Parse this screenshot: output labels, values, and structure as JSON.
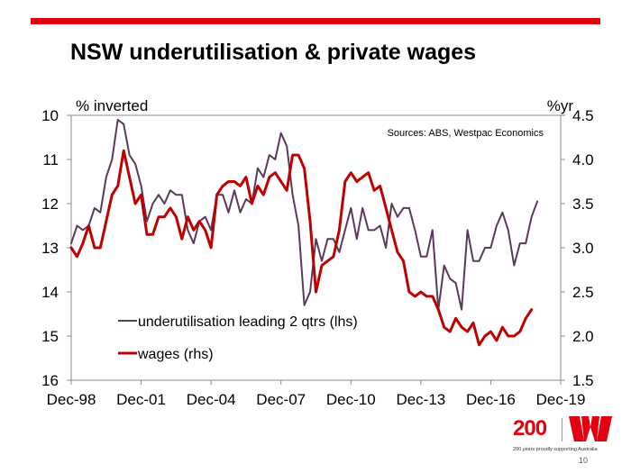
{
  "slide": {
    "title": "NSW underutilisation & private wages",
    "page_number": "10"
  },
  "logo": {
    "number": "200",
    "tagline": "200 years proudly supporting Australia"
  },
  "chart_data": {
    "type": "line",
    "title": "NSW underutilisation & private wages",
    "source": "Sources: ABS, Westpac Economics",
    "left_axis_label": "% inverted",
    "right_axis_label": "%yr",
    "left_axis": {
      "min": 10,
      "max": 16,
      "inverted": true,
      "ticks": [
        "10",
        "11",
        "12",
        "13",
        "14",
        "15",
        "16"
      ]
    },
    "right_axis": {
      "min": 1.5,
      "max": 4.5,
      "ticks": [
        "1.5",
        "2.0",
        "2.5",
        "3.0",
        "3.5",
        "4.0",
        "4.5"
      ]
    },
    "x_range": [
      "1998-12",
      "2019-12"
    ],
    "x_tick_labels": [
      "Dec-98",
      "Dec-01",
      "Dec-04",
      "Dec-07",
      "Dec-10",
      "Dec-13",
      "Dec-16",
      "Dec-19"
    ],
    "x_tick_dates": [
      "1998-12",
      "2001-12",
      "2004-12",
      "2007-12",
      "2010-12",
      "2013-12",
      "2016-12",
      "2019-12"
    ],
    "grid": false,
    "legend_position": "bottom-left",
    "series": [
      {
        "name": "underutilisation leading 2 qtrs (lhs)",
        "axis": "left",
        "color": "#5a3a5a",
        "points": [
          [
            "1998-12",
            12.9
          ],
          [
            "1999-03",
            12.5
          ],
          [
            "1999-06",
            12.6
          ],
          [
            "1999-09",
            12.5
          ],
          [
            "1999-12",
            12.1
          ],
          [
            "2000-03",
            12.2
          ],
          [
            "2000-06",
            11.4
          ],
          [
            "2000-09",
            11.0
          ],
          [
            "2000-12",
            10.1
          ],
          [
            "2001-03",
            10.2
          ],
          [
            "2001-06",
            10.9
          ],
          [
            "2001-09",
            11.1
          ],
          [
            "2001-12",
            11.6
          ],
          [
            "2002-03",
            12.4
          ],
          [
            "2002-06",
            12.0
          ],
          [
            "2002-09",
            11.8
          ],
          [
            "2002-12",
            12.0
          ],
          [
            "2003-03",
            11.7
          ],
          [
            "2003-06",
            11.8
          ],
          [
            "2003-09",
            11.8
          ],
          [
            "2003-12",
            12.6
          ],
          [
            "2004-03",
            12.9
          ],
          [
            "2004-06",
            12.4
          ],
          [
            "2004-09",
            12.3
          ],
          [
            "2004-12",
            12.6
          ],
          [
            "2005-03",
            11.8
          ],
          [
            "2005-06",
            11.8
          ],
          [
            "2005-09",
            12.2
          ],
          [
            "2005-12",
            11.7
          ],
          [
            "2006-03",
            12.2
          ],
          [
            "2006-06",
            11.9
          ],
          [
            "2006-09",
            12.0
          ],
          [
            "2006-12",
            11.2
          ],
          [
            "2007-03",
            11.4
          ],
          [
            "2007-06",
            10.9
          ],
          [
            "2007-09",
            11.0
          ],
          [
            "2007-12",
            10.4
          ],
          [
            "2008-03",
            10.7
          ],
          [
            "2008-06",
            11.8
          ],
          [
            "2008-09",
            12.5
          ],
          [
            "2008-12",
            14.3
          ],
          [
            "2009-03",
            14.0
          ],
          [
            "2009-06",
            12.8
          ],
          [
            "2009-09",
            13.3
          ],
          [
            "2009-12",
            12.8
          ],
          [
            "2010-03",
            12.8
          ],
          [
            "2010-06",
            13.1
          ],
          [
            "2010-09",
            12.6
          ],
          [
            "2010-12",
            12.1
          ],
          [
            "2011-03",
            12.8
          ],
          [
            "2011-06",
            12.1
          ],
          [
            "2011-09",
            12.6
          ],
          [
            "2011-12",
            12.6
          ],
          [
            "2012-03",
            12.5
          ],
          [
            "2012-06",
            13.0
          ],
          [
            "2012-09",
            12.0
          ],
          [
            "2012-12",
            12.3
          ],
          [
            "2013-03",
            12.1
          ],
          [
            "2013-06",
            12.1
          ],
          [
            "2013-09",
            12.6
          ],
          [
            "2013-12",
            13.2
          ],
          [
            "2014-03",
            13.2
          ],
          [
            "2014-06",
            12.6
          ],
          [
            "2014-09",
            14.4
          ],
          [
            "2014-12",
            13.4
          ],
          [
            "2015-03",
            13.7
          ],
          [
            "2015-06",
            13.8
          ],
          [
            "2015-09",
            14.4
          ],
          [
            "2015-12",
            12.6
          ],
          [
            "2016-03",
            13.3
          ],
          [
            "2016-06",
            13.3
          ],
          [
            "2016-09",
            13.0
          ],
          [
            "2016-12",
            13.0
          ],
          [
            "2017-03",
            12.5
          ],
          [
            "2017-06",
            12.2
          ],
          [
            "2017-09",
            12.6
          ],
          [
            "2017-12",
            13.4
          ],
          [
            "2018-03",
            12.9
          ],
          [
            "2018-06",
            12.9
          ],
          [
            "2018-09",
            12.3
          ],
          [
            "2018-12",
            11.95
          ]
        ]
      },
      {
        "name": "wages (rhs)",
        "axis": "right",
        "color": "#c00000",
        "points": [
          [
            "1998-12",
            3.0
          ],
          [
            "1999-03",
            2.9
          ],
          [
            "1999-06",
            3.05
          ],
          [
            "1999-09",
            3.25
          ],
          [
            "1999-12",
            3.0
          ],
          [
            "2000-03",
            3.0
          ],
          [
            "2000-06",
            3.3
          ],
          [
            "2000-09",
            3.6
          ],
          [
            "2000-12",
            3.7
          ],
          [
            "2001-03",
            4.1
          ],
          [
            "2001-06",
            3.8
          ],
          [
            "2001-09",
            3.5
          ],
          [
            "2001-12",
            3.6
          ],
          [
            "2002-03",
            3.15
          ],
          [
            "2002-06",
            3.15
          ],
          [
            "2002-09",
            3.35
          ],
          [
            "2002-12",
            3.35
          ],
          [
            "2003-03",
            3.45
          ],
          [
            "2003-06",
            3.35
          ],
          [
            "2003-09",
            3.1
          ],
          [
            "2003-12",
            3.35
          ],
          [
            "2004-03",
            3.2
          ],
          [
            "2004-06",
            3.3
          ],
          [
            "2004-09",
            3.2
          ],
          [
            "2004-12",
            3.0
          ],
          [
            "2005-03",
            3.6
          ],
          [
            "2005-06",
            3.7
          ],
          [
            "2005-09",
            3.75
          ],
          [
            "2005-12",
            3.75
          ],
          [
            "2006-03",
            3.7
          ],
          [
            "2006-06",
            3.8
          ],
          [
            "2006-09",
            3.5
          ],
          [
            "2006-12",
            3.7
          ],
          [
            "2007-03",
            3.6
          ],
          [
            "2007-06",
            3.8
          ],
          [
            "2007-09",
            3.85
          ],
          [
            "2007-12",
            3.75
          ],
          [
            "2008-03",
            3.65
          ],
          [
            "2008-06",
            4.05
          ],
          [
            "2008-09",
            4.05
          ],
          [
            "2008-12",
            3.9
          ],
          [
            "2009-03",
            3.3
          ],
          [
            "2009-06",
            2.5
          ],
          [
            "2009-09",
            2.8
          ],
          [
            "2009-12",
            2.85
          ],
          [
            "2010-03",
            2.9
          ],
          [
            "2010-06",
            3.2
          ],
          [
            "2010-09",
            3.75
          ],
          [
            "2010-12",
            3.85
          ],
          [
            "2011-03",
            3.75
          ],
          [
            "2011-06",
            3.8
          ],
          [
            "2011-09",
            3.85
          ],
          [
            "2011-12",
            3.65
          ],
          [
            "2012-03",
            3.7
          ],
          [
            "2012-06",
            3.45
          ],
          [
            "2012-09",
            3.2
          ],
          [
            "2012-12",
            2.95
          ],
          [
            "2013-03",
            2.85
          ],
          [
            "2013-06",
            2.5
          ],
          [
            "2013-09",
            2.45
          ],
          [
            "2013-12",
            2.5
          ],
          [
            "2014-03",
            2.45
          ],
          [
            "2014-06",
            2.45
          ],
          [
            "2014-09",
            2.3
          ],
          [
            "2014-12",
            2.1
          ],
          [
            "2015-03",
            2.05
          ],
          [
            "2015-06",
            2.2
          ],
          [
            "2015-09",
            2.1
          ],
          [
            "2015-12",
            2.05
          ],
          [
            "2016-03",
            2.15
          ],
          [
            "2016-06",
            1.9
          ],
          [
            "2016-09",
            2.0
          ],
          [
            "2016-12",
            2.05
          ],
          [
            "2017-03",
            1.95
          ],
          [
            "2017-06",
            2.1
          ],
          [
            "2017-09",
            2.0
          ],
          [
            "2017-12",
            2.0
          ],
          [
            "2018-03",
            2.05
          ],
          [
            "2018-06",
            2.2
          ],
          [
            "2018-09",
            2.3
          ]
        ]
      }
    ]
  }
}
